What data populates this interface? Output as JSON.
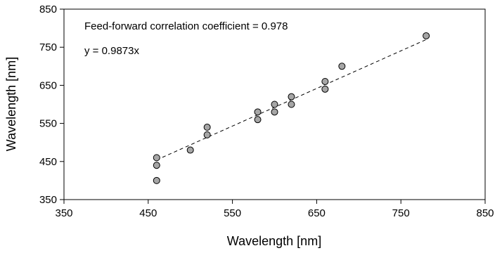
{
  "chart_data": {
    "type": "scatter",
    "title": "",
    "xlabel": "Wavelength [nm]",
    "ylabel": "Wavelength [nm]",
    "xlim": [
      350,
      850
    ],
    "ylim": [
      350,
      850
    ],
    "x_ticks": [
      350,
      450,
      550,
      650,
      750,
      850
    ],
    "y_ticks": [
      350,
      450,
      550,
      650,
      750,
      850
    ],
    "x_tick_labels": [
      "350",
      "450",
      "550",
      "650",
      "750",
      "850"
    ],
    "y_tick_labels": [
      "350",
      "450",
      "550",
      "650",
      "750",
      "850"
    ],
    "grid": false,
    "legend": "none",
    "annotations": [
      "Feed-forward correlation coefficient = 0.978",
      "y = 0.9873x"
    ],
    "points": [
      {
        "x": 460,
        "y": 400
      },
      {
        "x": 460,
        "y": 440
      },
      {
        "x": 460,
        "y": 460
      },
      {
        "x": 500,
        "y": 480
      },
      {
        "x": 520,
        "y": 520
      },
      {
        "x": 520,
        "y": 540
      },
      {
        "x": 580,
        "y": 560
      },
      {
        "x": 580,
        "y": 580
      },
      {
        "x": 600,
        "y": 580
      },
      {
        "x": 600,
        "y": 600
      },
      {
        "x": 620,
        "y": 600
      },
      {
        "x": 620,
        "y": 620
      },
      {
        "x": 660,
        "y": 640
      },
      {
        "x": 660,
        "y": 660
      },
      {
        "x": 680,
        "y": 700
      },
      {
        "x": 780,
        "y": 780
      }
    ],
    "trendline": {
      "slope": 0.9873,
      "x_range": [
        460,
        780
      ],
      "style": "dashed"
    },
    "colors": {
      "marker_fill": "#a6a6a6",
      "marker_stroke": "#000000",
      "line": "#000000"
    }
  }
}
